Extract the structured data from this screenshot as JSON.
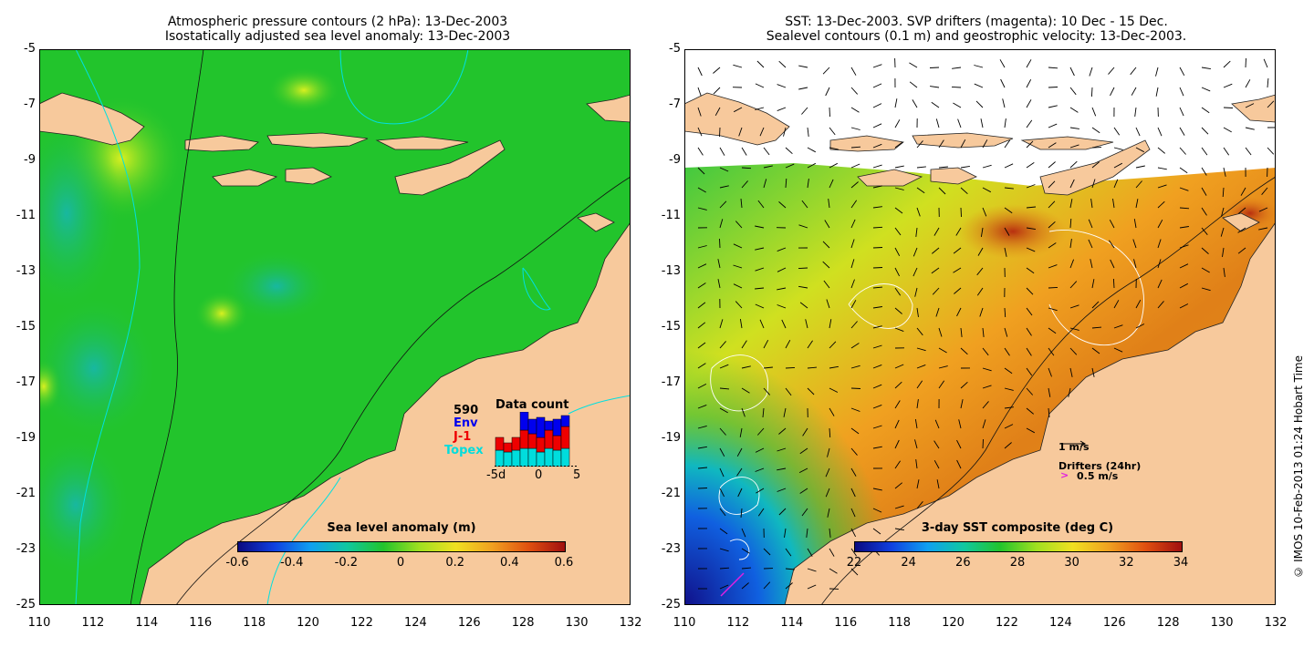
{
  "left_panel": {
    "title_line1": "Atmospheric pressure contours (2 hPa): 13-Dec-2003",
    "title_line2": "Isostatically adjusted sea level anomaly: 13-Dec-2003",
    "colorbar_title": "Sea level anomaly (m)",
    "colorbar_ticks": [
      "-0.6",
      "-0.4",
      "-0.2",
      "0",
      "0.2",
      "0.4",
      "0.6"
    ],
    "inset": {
      "count": "590",
      "env_label": "Env",
      "j1_label": "J-1",
      "topex_label": "Topex",
      "title": "Data count",
      "axis_ticks": [
        "-5d",
        "0",
        "5"
      ],
      "env_color": "#0000ee",
      "j1_color": "#ee0000",
      "topex_color": "#00dddd"
    }
  },
  "right_panel": {
    "title_line1": "SST: 13-Dec-2003. SVP drifters (magenta): 10 Dec - 15 Dec.",
    "title_line2": "Sealevel contours (0.1 m) and geostrophic velocity: 13-Dec-2003.",
    "colorbar_title": "3-day SST composite (deg C)",
    "colorbar_ticks": [
      "22",
      "24",
      "26",
      "28",
      "30",
      "32",
      "34"
    ],
    "speed_label": "1 m/s",
    "drifters_label": "Drifters (24hr)",
    "drifter_speed_label": "0.5 m/s"
  },
  "axes": {
    "lat_ticks": [
      "-5",
      "-7",
      "-9",
      "-11",
      "-13",
      "-15",
      "-17",
      "-19",
      "-21",
      "-23",
      "-25"
    ],
    "lon_ticks": [
      "110",
      "112",
      "114",
      "116",
      "118",
      "120",
      "122",
      "124",
      "126",
      "128",
      "130",
      "132"
    ]
  },
  "credit": "© IMOS 10-Feb-2013 01:24 Hobart Time",
  "colors": {
    "land": "#f7c99c",
    "ocean_anomaly": "#22c42c",
    "sst_warm": "#e8901c"
  }
}
